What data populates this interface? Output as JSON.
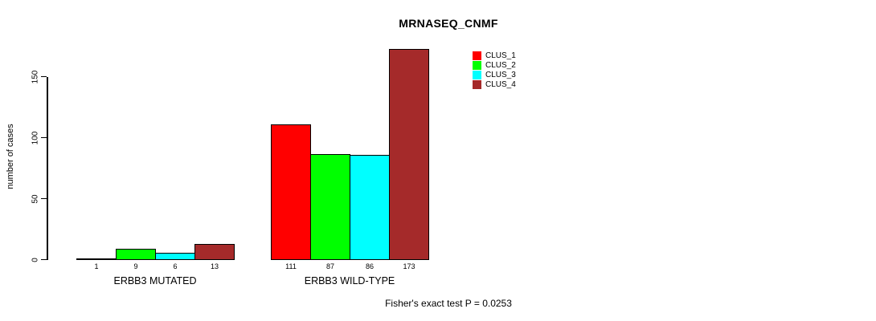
{
  "title": "MRNASEQ_CNMF",
  "footer": "Fisher's exact test P = 0.0253",
  "y_axis": {
    "label": "number of cases",
    "ticks": [
      0,
      50,
      100,
      150
    ]
  },
  "chart_data": {
    "type": "bar",
    "title": "MRNASEQ_CNMF",
    "xlabel": "",
    "ylabel": "number of cases",
    "categories": [
      "ERBB3 MUTATED",
      "ERBB3 WILD-TYPE"
    ],
    "series": [
      {
        "name": "CLUS_1",
        "color": "#ff0000",
        "values": [
          1,
          111
        ]
      },
      {
        "name": "CLUS_2",
        "color": "#00ff00",
        "values": [
          9,
          87
        ]
      },
      {
        "name": "CLUS_3",
        "color": "#00ffff",
        "values": [
          6,
          86
        ]
      },
      {
        "name": "CLUS_4",
        "color": "#a52a2a",
        "values": [
          13,
          173
        ]
      }
    ],
    "bar_value_labels": [
      [
        1,
        9,
        6,
        13
      ],
      [
        111,
        87,
        86,
        173
      ]
    ],
    "yticks": [
      0,
      50,
      100,
      150
    ],
    "ylim": [
      0,
      175
    ],
    "grid": false,
    "bar_border_color": "#000000",
    "legend_position": "top-right",
    "legend_entries": [
      "CLUS_1",
      "CLUS_2",
      "CLUS_3",
      "CLUS_4"
    ],
    "annotation": "Fisher's exact test P = 0.0253"
  }
}
